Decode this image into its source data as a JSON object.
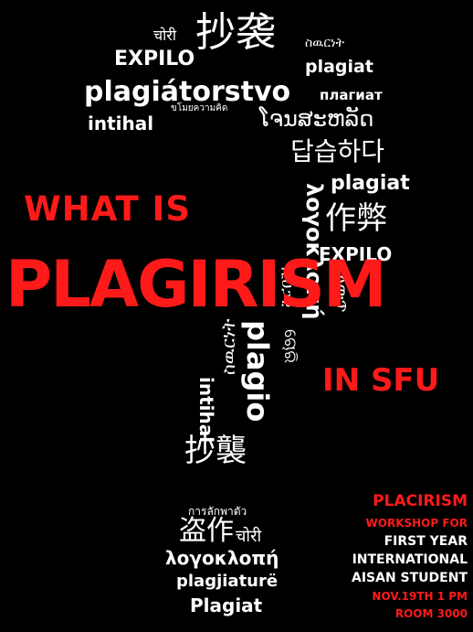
{
  "heading": {
    "line1": "WHAT IS",
    "main": "PLAGIRISM",
    "line3": "IN SFU"
  },
  "word_cloud": [
    "चोरी",
    "抄袭",
    "ስዉርነት",
    "EXPILO",
    "plagiat",
    "plagiátorstvo",
    "плагиат",
    "intihal",
    "ขโมยความคิด",
    "ໂຈນສະຫລັດ",
    "답습하다",
    "plagiat",
    "λογοκλοπή",
    "作弊",
    "EXPILO",
    "ለውጥ",
    "ኢህጋዊ",
    "ଚୋରି",
    "plagio",
    "ስዉርነት",
    "intihal",
    "抄襲",
    "การลักพาตัว",
    "盗作",
    "चोरी",
    "λογοκλοπή",
    "plagjiaturë",
    "Plagiat"
  ],
  "info": {
    "title": "PLACIRISM",
    "line1": "WORKSHOP FOR",
    "line2": "FIRST YEAR",
    "line3": "INTERNATIONAL",
    "line4": "AISAN STUDENT",
    "date": "NOV.19TH 1 PM",
    "room": "ROOM 3000"
  },
  "colors": {
    "background": "#000000",
    "accent": "#ff1a1a",
    "text": "#ffffff"
  }
}
